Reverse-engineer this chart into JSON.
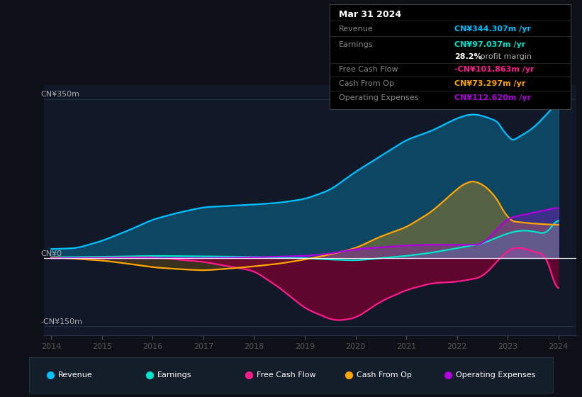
{
  "bg_color": "#0d1117",
  "plot_bg_color": "#111827",
  "revenue_color": "#00bfff",
  "earnings_color": "#00e5cc",
  "fcf_color": "#ff1a8c",
  "cashop_color": "#ffa500",
  "opex_color": "#b000e0",
  "info_box": {
    "date": "Mar 31 2024",
    "revenue_label": "Revenue",
    "revenue_val": "CN¥344.307m /yr",
    "earnings_label": "Earnings",
    "earnings_val": "CN¥97.037m /yr",
    "profit_margin": "28.2% profit margin",
    "fcf_label": "Free Cash Flow",
    "fcf_val": "-CN¥101.863m /yr",
    "cashop_label": "Cash From Op",
    "cashop_val": "CN¥73.297m /yr",
    "opex_label": "Operating Expenses",
    "opex_val": "CN¥112.620m /yr"
  },
  "legend_items": [
    {
      "label": "Revenue",
      "color": "#00bfff"
    },
    {
      "label": "Earnings",
      "color": "#00e5cc"
    },
    {
      "label": "Free Cash Flow",
      "color": "#ff1a8c"
    },
    {
      "label": "Cash From Op",
      "color": "#ffa500"
    },
    {
      "label": "Operating Expenses",
      "color": "#b000e0"
    }
  ]
}
